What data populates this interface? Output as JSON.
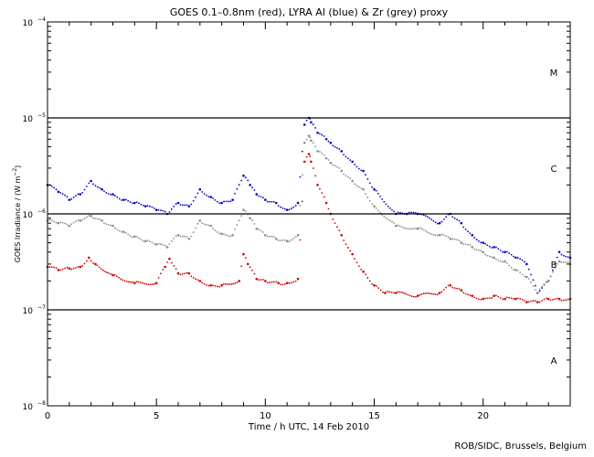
{
  "chart_data": {
    "type": "scatter",
    "title": "GOES 0.1–0.8nm (red), LYRA Al (blue) & Zr (grey) proxy",
    "xlabel": "Time / h UTC, 14 Feb 2010",
    "ylabel": "GOES Irradiance / (W m⁻²)",
    "ylabel_prefix": "GOES Irradiance / (W m",
    "ylabel_exp": "−2",
    "ylabel_suffix": ")",
    "y_scale": "log",
    "xlim": [
      0,
      24
    ],
    "ylim": [
      1e-08,
      0.0001
    ],
    "x_ticks": [
      0,
      5,
      10,
      15,
      20
    ],
    "x_tick_labels": [
      "0",
      "5",
      "10",
      "15",
      "20"
    ],
    "y_ticks": [
      {
        "value": 1e-08,
        "mantissa": "10",
        "exp": "−8"
      },
      {
        "value": 1e-07,
        "mantissa": "10",
        "exp": "−7"
      },
      {
        "value": 1e-06,
        "mantissa": "10",
        "exp": "−6"
      },
      {
        "value": 1e-05,
        "mantissa": "10",
        "exp": "−5"
      },
      {
        "value": 0.0001,
        "mantissa": "10",
        "exp": "−4"
      }
    ],
    "class_lines": [
      1e-07,
      1e-06,
      1e-05
    ],
    "class_labels": [
      {
        "label": "A",
        "value": 3e-08
      },
      {
        "label": "B",
        "value": 3e-07
      },
      {
        "label": "C",
        "value": 3e-06
      },
      {
        "label": "M",
        "value": 3e-05
      }
    ],
    "series": [
      {
        "name": "GOES 0.1–0.8nm",
        "color": "#d00000",
        "x": [
          0,
          0.5,
          1,
          1.5,
          1.9,
          2.2,
          3,
          4,
          5,
          5.4,
          5.6,
          6,
          6.5,
          7,
          7.5,
          8,
          8.8,
          9,
          9.2,
          9.6,
          10,
          10.6,
          11,
          11.5,
          11.8,
          12,
          12.1,
          12.4,
          12.8,
          13,
          13.5,
          14,
          14.5,
          15,
          15.5,
          16,
          17,
          18,
          18.5,
          19,
          19.5,
          20,
          20.5,
          21,
          21.5,
          22,
          22.5,
          23,
          23.5,
          24
        ],
        "y": [
          2.8e-07,
          2.6e-07,
          2.7e-07,
          2.8e-07,
          3.5e-07,
          3e-07,
          2.3e-07,
          1.9e-07,
          1.9e-07,
          2.8e-07,
          3.4e-07,
          2.4e-07,
          2.4e-07,
          2e-07,
          1.8e-07,
          1.8e-07,
          2e-07,
          3.8e-07,
          3e-07,
          2.1e-07,
          2e-07,
          1.9e-07,
          1.9e-07,
          2.1e-07,
          3.5e-06,
          4.2e-06,
          3.5e-06,
          2e-06,
          1.3e-06,
          1e-06,
          6e-07,
          3.8e-07,
          2.5e-07,
          1.8e-07,
          1.5e-07,
          1.5e-07,
          1.4e-07,
          1.5e-07,
          1.8e-07,
          1.6e-07,
          1.4e-07,
          1.3e-07,
          1.4e-07,
          1.3e-07,
          1.3e-07,
          1.2e-07,
          1.2e-07,
          1.3e-07,
          1.3e-07,
          1.3e-07
        ]
      },
      {
        "name": "LYRA Al proxy",
        "color": "#0000c8",
        "x": [
          0,
          0.5,
          1,
          1.5,
          2,
          2.5,
          3,
          3.5,
          4,
          4.5,
          5,
          5.5,
          6,
          6.5,
          7,
          7.5,
          8,
          8.5,
          9,
          9.3,
          9.6,
          10,
          10.5,
          11,
          11.5,
          11.8,
          12,
          12.1,
          12.4,
          12.8,
          13,
          13.5,
          14,
          14.5,
          15,
          16,
          16.5,
          17,
          18,
          18.5,
          19,
          19.5,
          20,
          20.5,
          21,
          21.5,
          22,
          22.5,
          23,
          23.5,
          24
        ],
        "y": [
          2e-06,
          1.7e-06,
          1.4e-06,
          1.6e-06,
          2.2e-06,
          1.8e-06,
          1.6e-06,
          1.4e-06,
          1.3e-06,
          1.2e-06,
          1.1e-06,
          1e-06,
          1.3e-06,
          1.2e-06,
          1.8e-06,
          1.5e-06,
          1.3e-06,
          1.4e-06,
          2.5e-06,
          2e-06,
          1.6e-06,
          1.4e-06,
          1.3e-06,
          1.1e-06,
          1.3e-06,
          8.5e-06,
          1e-05,
          9e-06,
          7e-06,
          6e-06,
          5.5e-06,
          4.5e-06,
          3.5e-06,
          2.8e-06,
          1.8e-06,
          1e-06,
          1e-06,
          1e-06,
          8e-07,
          1e-06,
          8e-07,
          6e-07,
          5e-07,
          4.5e-07,
          4e-07,
          3.5e-07,
          3e-07,
          1.5e-07,
          2e-07,
          4e-07,
          3.5e-07
        ]
      },
      {
        "name": "LYRA Zr proxy",
        "color": "#8c8c8c",
        "x": [
          0,
          0.5,
          1,
          1.5,
          2,
          2.5,
          3,
          3.5,
          4,
          4.5,
          5,
          5.5,
          6,
          6.5,
          7,
          7.5,
          8,
          8.5,
          9,
          9.3,
          9.6,
          10,
          10.5,
          11,
          11.5,
          11.8,
          12,
          12.1,
          12.4,
          12.8,
          13,
          13.5,
          14,
          14.5,
          15,
          16,
          17,
          18,
          18.5,
          19,
          19.5,
          20,
          20.5,
          21,
          21.5,
          22,
          22.5,
          23,
          23.5,
          24
        ],
        "y": [
          8.5e-07,
          8e-07,
          7.5e-07,
          8.5e-07,
          9.5e-07,
          8.5e-07,
          7.5e-07,
          6.5e-07,
          5.8e-07,
          5.2e-07,
          4.8e-07,
          4.5e-07,
          6e-07,
          5.5e-07,
          8.5e-07,
          7.5e-07,
          6.2e-07,
          6e-07,
          1.1e-06,
          9e-07,
          7e-07,
          6e-07,
          5.5e-07,
          5.2e-07,
          6e-07,
          5.5e-06,
          6.5e-06,
          5.8e-06,
          4.5e-06,
          3.8e-06,
          3.4e-06,
          2.8e-06,
          2.2e-06,
          1.8e-06,
          1.2e-06,
          7.5e-07,
          7e-07,
          6e-07,
          5.5e-07,
          5e-07,
          4.5e-07,
          4e-07,
          3.5e-07,
          3.2e-07,
          2.6e-07,
          2.2e-07,
          1.5e-07,
          2e-07,
          3.2e-07,
          3e-07
        ]
      }
    ]
  },
  "credit": "ROB/SIDC, Brussels, Belgium"
}
